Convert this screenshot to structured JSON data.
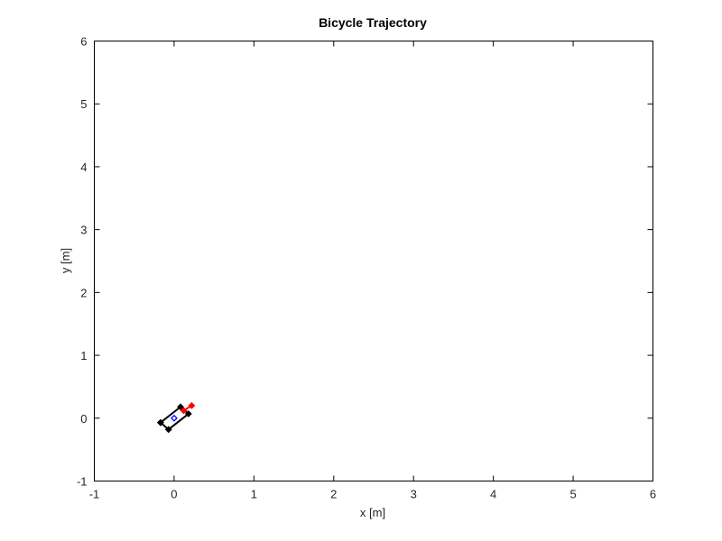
{
  "chart_data": {
    "type": "line",
    "title": "Bicycle Trajectory",
    "xlabel": "x [m]",
    "ylabel": "y [m]",
    "xlim": [
      -1,
      6
    ],
    "ylim": [
      -1,
      6
    ],
    "xticks": [
      "-1",
      "0",
      "1",
      "2",
      "3",
      "4",
      "5",
      "6"
    ],
    "yticks": [
      "-1",
      "0",
      "1",
      "2",
      "3",
      "4",
      "5",
      "6"
    ],
    "grid": false,
    "legend": "none",
    "series": [
      {
        "role": "bicycle-body",
        "color": "#000000",
        "points": [
          [
            -0.17,
            -0.07
          ],
          [
            0.08,
            0.18
          ],
          [
            0.18,
            0.07
          ],
          [
            -0.07,
            -0.18
          ],
          [
            -0.17,
            -0.07
          ]
        ]
      },
      {
        "role": "front-wheel",
        "color": "#ff0000",
        "points": [
          [
            0.12,
            0.12
          ],
          [
            0.22,
            0.2
          ]
        ]
      },
      {
        "role": "center",
        "color": "#0000ff",
        "points": [
          [
            0.0,
            0.0
          ]
        ]
      }
    ]
  }
}
